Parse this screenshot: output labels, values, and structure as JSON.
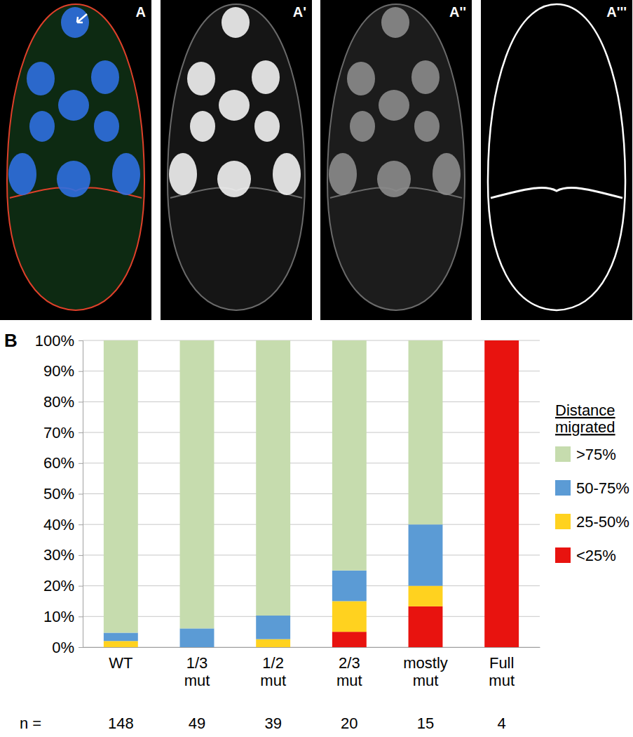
{
  "figure": {
    "panel_labels": [
      "A",
      "A'",
      "A''",
      "A'''"
    ],
    "chart_label": "B"
  },
  "chart_data": {
    "type": "bar",
    "stacked": true,
    "grid": true,
    "legend": "right",
    "legend_title": "Distance migrated",
    "categories": [
      "WT",
      "1/3 mut",
      "1/2 mut",
      "2/3 mut",
      "mostly mut",
      "Full mut"
    ],
    "series": [
      {
        "name": ">75%",
        "color": "#c6dcae",
        "values": [
          95.3,
          93.9,
          89.7,
          75,
          60,
          0
        ]
      },
      {
        "name": "50-75%",
        "color": "#5b9bd5",
        "values": [
          2.7,
          6.1,
          7.7,
          10,
          20,
          0
        ]
      },
      {
        "name": "25-50%",
        "color": "#ffd21f",
        "values": [
          2.0,
          0,
          2.6,
          10,
          6.7,
          0
        ]
      },
      {
        "name": "<25%",
        "color": "#e8130f",
        "values": [
          0,
          0,
          0,
          5,
          13.3,
          100
        ]
      }
    ],
    "ylim": [
      0,
      100
    ],
    "yticks": [
      {
        "value": 0,
        "label": "0%"
      },
      {
        "value": 10,
        "label": "10%"
      },
      {
        "value": 20,
        "label": "20%"
      },
      {
        "value": 30,
        "label": "30%"
      },
      {
        "value": 40,
        "label": "40%"
      },
      {
        "value": 50,
        "label": "50%"
      },
      {
        "value": 60,
        "label": "60%"
      },
      {
        "value": 70,
        "label": "70%"
      },
      {
        "value": 80,
        "label": "80%"
      },
      {
        "value": 90,
        "label": "90%"
      },
      {
        "value": 100,
        "label": "100%"
      }
    ],
    "n_label": "n =",
    "n": [
      148,
      49,
      39,
      20,
      15,
      4
    ]
  }
}
